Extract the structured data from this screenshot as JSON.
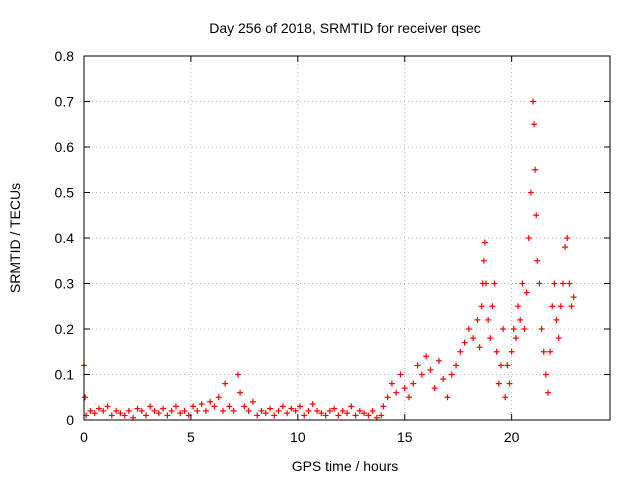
{
  "chart_data": {
    "type": "scatter",
    "title": "Day 256 of 2018, SRMTID for receiver qsec",
    "xlabel": "GPS time / hours",
    "ylabel": "SRMTID / TECUs",
    "xlim": [
      0,
      24.6
    ],
    "ylim": [
      0,
      0.8
    ],
    "xticks": [
      0,
      5,
      10,
      15,
      20
    ],
    "xtick_labels": [
      "0",
      "5",
      "10",
      "15",
      "20"
    ],
    "yticks": [
      0,
      0.1,
      0.2,
      0.3,
      0.4,
      0.5,
      0.6,
      0.7,
      0.8
    ],
    "ytick_labels": [
      "0",
      "0.1",
      "0.2",
      "0.3",
      "0.4",
      "0.5",
      "0.6",
      "0.7",
      "0.8"
    ],
    "grid": true,
    "marker": "+",
    "color": "#ff0000",
    "series": [
      {
        "name": "qsec",
        "x": [
          0.0,
          0.05,
          0.1,
          0.3,
          0.5,
          0.7,
          0.9,
          1.1,
          1.3,
          1.5,
          1.7,
          1.9,
          2.1,
          2.3,
          2.5,
          2.7,
          2.9,
          3.1,
          3.3,
          3.5,
          3.7,
          3.9,
          4.1,
          4.3,
          4.5,
          4.7,
          4.9,
          5.1,
          5.3,
          5.5,
          5.7,
          5.9,
          6.1,
          6.3,
          6.5,
          6.6,
          6.8,
          7.0,
          7.2,
          7.3,
          7.5,
          7.7,
          7.9,
          8.1,
          8.3,
          8.5,
          8.7,
          8.9,
          9.1,
          9.3,
          9.5,
          9.7,
          9.9,
          10.1,
          10.3,
          10.5,
          10.7,
          10.9,
          11.1,
          11.3,
          11.5,
          11.7,
          11.9,
          12.1,
          12.3,
          12.5,
          12.7,
          12.9,
          13.1,
          13.3,
          13.5,
          13.7,
          13.9,
          14.0,
          14.2,
          14.4,
          14.6,
          14.8,
          15.0,
          15.2,
          15.4,
          15.6,
          15.8,
          16.0,
          16.2,
          16.4,
          16.6,
          16.8,
          17.0,
          17.2,
          17.4,
          17.6,
          17.8,
          18.0,
          18.2,
          18.4,
          18.5,
          18.6,
          18.65,
          18.7,
          18.75,
          18.8,
          18.9,
          19.0,
          19.1,
          19.2,
          19.3,
          19.4,
          19.5,
          19.6,
          19.7,
          19.8,
          19.9,
          20.0,
          20.1,
          20.2,
          20.3,
          20.4,
          20.5,
          20.6,
          20.7,
          20.8,
          20.9,
          21.0,
          21.05,
          21.1,
          21.15,
          21.2,
          21.3,
          21.4,
          21.5,
          21.6,
          21.7,
          21.8,
          21.9,
          22.0,
          22.1,
          22.2,
          22.3,
          22.4,
          22.5,
          22.6,
          22.7,
          22.8,
          22.9
        ],
        "y": [
          0.12,
          0.05,
          0.01,
          0.02,
          0.015,
          0.025,
          0.02,
          0.03,
          0.01,
          0.02,
          0.015,
          0.01,
          0.02,
          0.005,
          0.025,
          0.02,
          0.01,
          0.03,
          0.02,
          0.015,
          0.025,
          0.01,
          0.02,
          0.03,
          0.015,
          0.02,
          0.01,
          0.03,
          0.02,
          0.035,
          0.02,
          0.04,
          0.03,
          0.05,
          0.02,
          0.08,
          0.03,
          0.02,
          0.1,
          0.06,
          0.03,
          0.02,
          0.04,
          0.01,
          0.02,
          0.015,
          0.025,
          0.01,
          0.02,
          0.03,
          0.015,
          0.025,
          0.02,
          0.03,
          0.01,
          0.02,
          0.035,
          0.02,
          0.015,
          0.01,
          0.02,
          0.025,
          0.01,
          0.02,
          0.015,
          0.03,
          0.01,
          0.02,
          0.015,
          0.01,
          0.02,
          0.005,
          0.01,
          0.03,
          0.05,
          0.08,
          0.06,
          0.1,
          0.07,
          0.05,
          0.08,
          0.12,
          0.1,
          0.14,
          0.11,
          0.07,
          0.13,
          0.09,
          0.05,
          0.1,
          0.12,
          0.15,
          0.17,
          0.2,
          0.18,
          0.22,
          0.16,
          0.25,
          0.3,
          0.35,
          0.39,
          0.3,
          0.22,
          0.18,
          0.25,
          0.3,
          0.15,
          0.08,
          0.12,
          0.2,
          0.05,
          0.12,
          0.08,
          0.15,
          0.2,
          0.18,
          0.25,
          0.22,
          0.3,
          0.2,
          0.28,
          0.4,
          0.5,
          0.7,
          0.65,
          0.55,
          0.45,
          0.35,
          0.3,
          0.2,
          0.15,
          0.1,
          0.06,
          0.15,
          0.25,
          0.3,
          0.22,
          0.18,
          0.25,
          0.3,
          0.38,
          0.4,
          0.3,
          0.25,
          0.27
        ]
      }
    ]
  }
}
